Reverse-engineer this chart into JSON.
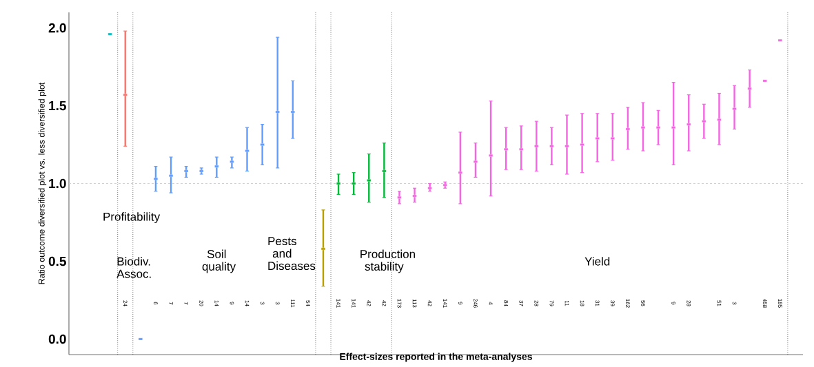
{
  "chart_data": {
    "type": "scatter",
    "xlabel": "Effect-sizes reported in the meta-analyses",
    "ylabel": "Ratio outcome diversified plot vs. less diversified plot",
    "annotations": [
      "Profitability",
      "Biodiv. Assoc.",
      "Soil quality",
      "Pests and Diseases",
      "Production stability",
      "Yield"
    ],
    "categories": [
      null,
      "24",
      null,
      "6",
      "7",
      "7",
      "20",
      "14",
      "9",
      "14",
      "3",
      "3",
      "111",
      "54",
      null,
      "141",
      "141",
      "42",
      "42",
      "173",
      "113",
      "42",
      "141",
      "9",
      "246",
      "4",
      "84",
      "37",
      "28",
      "79",
      "11",
      "18",
      "31",
      "39",
      "162",
      "56",
      null,
      "9",
      "28",
      null,
      "51",
      "3",
      null,
      "458",
      "185"
    ],
    "values": [
      1.96,
      1.57,
      0.0,
      1.03,
      1.05,
      1.08,
      1.08,
      1.11,
      1.14,
      1.21,
      1.25,
      1.46,
      1.46,
      null,
      0.58,
      1.0,
      1.0,
      1.02,
      1.08,
      0.91,
      0.92,
      0.97,
      0.99,
      1.07,
      1.14,
      1.18,
      1.22,
      1.22,
      1.24,
      1.24,
      1.24,
      1.25,
      1.29,
      1.29,
      1.35,
      1.36,
      1.36,
      1.36,
      1.38,
      1.4,
      1.41,
      1.48,
      1.61,
      1.66,
      1.92
    ],
    "errors": [
      null,
      [
        1.24,
        1.98
      ],
      null,
      [
        0.95,
        1.11
      ],
      [
        0.94,
        1.17
      ],
      [
        1.04,
        1.11
      ],
      [
        1.06,
        1.1
      ],
      [
        1.04,
        1.17
      ],
      [
        1.1,
        1.17
      ],
      [
        1.08,
        1.36
      ],
      [
        1.12,
        1.38
      ],
      [
        1.1,
        1.94
      ],
      [
        1.29,
        1.66
      ],
      null,
      [
        0.34,
        0.83
      ],
      [
        0.93,
        1.06
      ],
      [
        0.93,
        1.07
      ],
      [
        0.88,
        1.19
      ],
      [
        0.91,
        1.26
      ],
      [
        0.87,
        0.95
      ],
      [
        0.88,
        0.97
      ],
      [
        0.95,
        1.0
      ],
      [
        0.97,
        1.01
      ],
      [
        0.87,
        1.33
      ],
      [
        1.04,
        1.26
      ],
      [
        0.92,
        1.53
      ],
      [
        1.09,
        1.36
      ],
      [
        1.09,
        1.37
      ],
      [
        1.08,
        1.4
      ],
      [
        1.12,
        1.36
      ],
      [
        1.06,
        1.44
      ],
      [
        1.07,
        1.45
      ],
      [
        1.14,
        1.45
      ],
      [
        1.15,
        1.45
      ],
      [
        1.22,
        1.49
      ],
      [
        1.21,
        1.52
      ],
      [
        1.25,
        1.47
      ],
      [
        1.12,
        1.65
      ],
      [
        1.21,
        1.57
      ],
      [
        1.29,
        1.51
      ],
      [
        1.25,
        1.58
      ],
      [
        1.35,
        1.63
      ],
      [
        1.49,
        1.73
      ],
      null,
      null
    ],
    "colors": [
      "#00bfc4",
      "#f8766d",
      "#619cff",
      "#619cff",
      "#619cff",
      "#619cff",
      "#619cff",
      "#619cff",
      "#619cff",
      "#619cff",
      "#619cff",
      "#619cff",
      "#619cff",
      null,
      "#b79f00",
      "#00ba38",
      "#00ba38",
      "#00ba38",
      "#00ba38",
      "#f564e3",
      "#f564e3",
      "#f564e3",
      "#f564e3",
      "#f564e3",
      "#f564e3",
      "#f564e3",
      "#f564e3",
      "#f564e3",
      "#f564e3",
      "#f564e3",
      "#f564e3",
      "#f564e3",
      "#f564e3",
      "#f564e3",
      "#f564e3",
      "#f564e3",
      "#f564e3",
      "#f564e3",
      "#f564e3",
      "#f564e3",
      "#f564e3",
      "#f564e3",
      "#f564e3",
      "#f564e3",
      "#f564e3"
    ],
    "ylim": [
      -0.1,
      2.1
    ],
    "yticks": [
      {
        "value": 0,
        "label": "0.0"
      },
      {
        "value": 0.5,
        "label": "0.5"
      },
      {
        "value": 1,
        "label": "1.0"
      },
      {
        "value": 1.5,
        "label": "1.5"
      },
      {
        "value": 2,
        "label": "2.0"
      }
    ],
    "ref_lines": [
      {
        "axis": "y",
        "value": 1,
        "color": "#cccccc",
        "line_style": "dashed"
      }
    ],
    "marker": "square",
    "grid": false
  }
}
